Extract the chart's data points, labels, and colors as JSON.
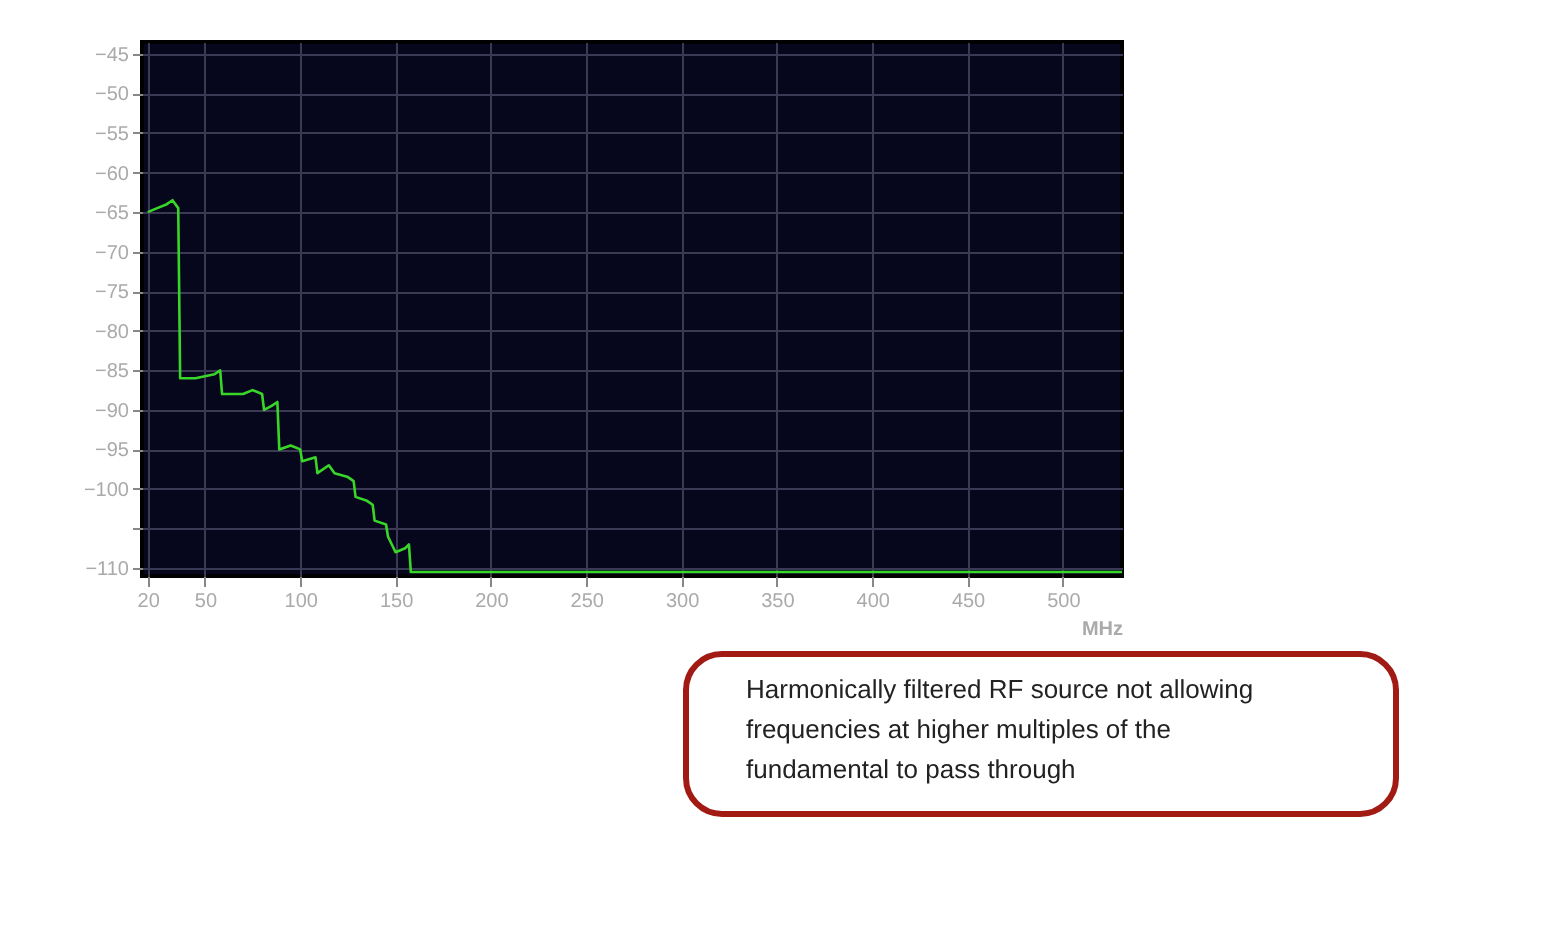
{
  "chart_data": {
    "type": "line",
    "xlabel": "MHz",
    "x": [
      20,
      25,
      30,
      33,
      36,
      37,
      45,
      55,
      58,
      59,
      70,
      75,
      80,
      81,
      85,
      88,
      89,
      95,
      100,
      101,
      108,
      109,
      115,
      118,
      125,
      128,
      129,
      135,
      138,
      139,
      145,
      146,
      150,
      155,
      157,
      158,
      531
    ],
    "series": [
      {
        "color": "#39d62a",
        "values": [
          -65,
          -64.5,
          -64,
          -63.5,
          -64.5,
          -86,
          -86,
          -85.5,
          -85,
          -88,
          -88,
          -87.5,
          -88,
          -90,
          -89.5,
          -89,
          -95,
          -94.5,
          -95,
          -96.5,
          -96,
          -98,
          -97,
          -98,
          -98.5,
          -99,
          -101,
          -101.5,
          -102,
          -104,
          -104.5,
          -106,
          -108,
          -107.5,
          -107,
          -110.5,
          -110.5
        ]
      }
    ],
    "xlim": [
      17,
      531
    ],
    "xticks": [
      20,
      50,
      100,
      150,
      200,
      250,
      300,
      350,
      400,
      450,
      500
    ],
    "ylim": [
      -111,
      -43.5
    ],
    "yticks": [
      -110,
      {
        "value": -105,
        "label": null
      },
      -100,
      -95,
      -90,
      -85,
      -80,
      -75,
      -70,
      -65,
      -60,
      -55,
      -50,
      -45
    ],
    "grid": true,
    "annotations": [
      "Harmonically filtered RF source not allowing frequencies at higher multiples of the fundamental to pass through"
    ]
  }
}
